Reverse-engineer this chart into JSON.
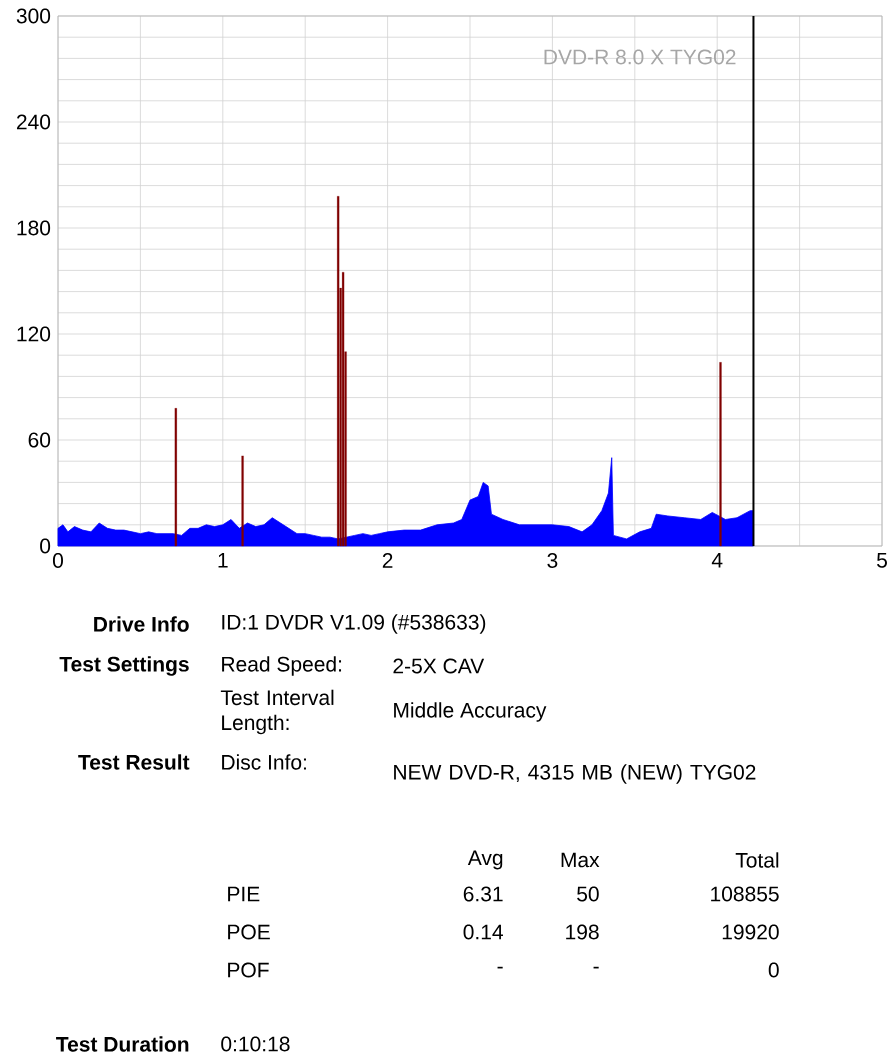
{
  "chart_data": {
    "type": "area",
    "series": [
      {
        "color": "#0000ff",
        "x": [
          0,
          0.03,
          0.06,
          0.1,
          0.15,
          0.2,
          0.25,
          0.3,
          0.35,
          0.4,
          0.45,
          0.5,
          0.55,
          0.6,
          0.65,
          0.7,
          0.75,
          0.8,
          0.85,
          0.9,
          0.95,
          1.0,
          1.05,
          1.1,
          1.15,
          1.2,
          1.25,
          1.3,
          1.35,
          1.4,
          1.45,
          1.5,
          1.55,
          1.6,
          1.65,
          1.7,
          1.75,
          1.8,
          1.85,
          1.9,
          1.95,
          2.0,
          2.1,
          2.2,
          2.3,
          2.4,
          2.45,
          2.5,
          2.55,
          2.58,
          2.61,
          2.63,
          2.7,
          2.8,
          2.9,
          3.0,
          3.1,
          3.18,
          3.24,
          3.3,
          3.34,
          3.36,
          3.37,
          3.45,
          3.53,
          3.6,
          3.63,
          3.7,
          3.8,
          3.9,
          3.97,
          4.05,
          4.12,
          4.2,
          4.22
        ],
        "values": [
          10,
          12,
          8,
          11,
          9,
          8,
          13,
          10,
          9,
          9,
          8,
          7,
          8,
          7,
          7,
          7,
          6,
          10,
          10,
          12,
          11,
          12,
          15,
          10,
          13,
          11,
          12,
          16,
          13,
          10,
          7,
          7,
          6,
          5,
          5,
          4,
          5,
          6,
          7,
          6,
          7,
          8,
          9,
          9,
          12,
          13,
          15,
          26,
          28,
          36,
          34,
          18,
          15,
          12,
          12,
          12,
          11,
          8,
          12,
          20,
          30,
          50,
          6,
          4,
          8,
          10,
          18,
          17,
          16,
          15,
          19,
          15,
          16,
          20,
          20
        ]
      },
      {
        "type": "bar",
        "color": "#800000",
        "x": [
          0.715,
          1.12,
          1.7,
          1.715,
          1.73,
          1.745,
          4.02
        ],
        "values": [
          78,
          51,
          198,
          146,
          155,
          110,
          104
        ]
      }
    ],
    "xlim": [
      0,
      5
    ],
    "xticks": [
      0,
      {
        "value": 0.5,
        "label": null
      },
      1,
      {
        "value": 1.5,
        "label": null
      },
      2,
      {
        "value": 2.5,
        "label": null
      },
      3,
      {
        "value": 3.5,
        "label": null
      },
      4,
      {
        "value": 4.5,
        "label": null
      },
      5
    ],
    "ylim": [
      0,
      300
    ],
    "yticks": [
      0,
      {
        "value": 12,
        "label": null
      },
      {
        "value": 24,
        "label": null
      },
      {
        "value": 36,
        "label": null
      },
      {
        "value": 48,
        "label": null
      },
      60,
      {
        "value": 72,
        "label": null
      },
      {
        "value": 84,
        "label": null
      },
      {
        "value": 96,
        "label": null
      },
      {
        "value": 108,
        "label": null
      },
      120,
      {
        "value": 132,
        "label": null
      },
      {
        "value": 144,
        "label": null
      },
      {
        "value": 156,
        "label": null
      },
      {
        "value": 168,
        "label": null
      },
      180,
      {
        "value": 192,
        "label": null
      },
      {
        "value": 204,
        "label": null
      },
      {
        "value": 216,
        "label": null
      },
      {
        "value": 228,
        "label": null
      },
      240,
      {
        "value": 252,
        "label": null
      },
      {
        "value": 264,
        "label": null
      },
      {
        "value": 276,
        "label": null
      },
      {
        "value": 288,
        "label": null
      },
      300
    ],
    "grid": true,
    "ref_lines": [
      {
        "axis": "x",
        "value": 4.22,
        "color": "#000000"
      }
    ],
    "annotations": [
      "DVD-R   8.0 X   TYG02",
      "Drive Info",
      "ID:1 DVDR V1.09 (#538633)",
      "Test Settings",
      "Read Speed:",
      "2-5X CAV",
      "Test Interval Length:",
      "Middle Accuracy",
      "Test Result",
      "Disc Info:",
      "NEW DVD-R, 4315 MB (NEW) TYG02",
      "Avg",
      "Max",
      "Total",
      "PIE",
      "6.31",
      "50",
      "108855",
      "POE",
      "0.14",
      "198",
      "19920",
      "POF",
      "-",
      "-",
      "0",
      "Test Duration",
      "0:10:18"
    ]
  }
}
